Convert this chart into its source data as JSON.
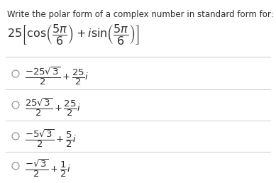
{
  "title": "Write the polar form of a complex number in standard form for:",
  "bg_color": "#ffffff",
  "text_color": "#2d2d2d",
  "divider_color": "#cccccc",
  "title_fontsize": 8.5,
  "question_fontsize": 11.5,
  "option_fontsize": 9.5,
  "circle_color": "#888888",
  "options": [
    "$\\dfrac{-25\\sqrt{3}}{2} + \\dfrac{25}{2}i$",
    "$\\dfrac{25\\sqrt{3}}{2} + \\dfrac{25}{2}i$",
    "$\\dfrac{-5\\sqrt{3}}{2} + \\dfrac{5}{2}i$",
    "$\\dfrac{-\\sqrt{3}}{2} + \\dfrac{1}{2}i$"
  ]
}
